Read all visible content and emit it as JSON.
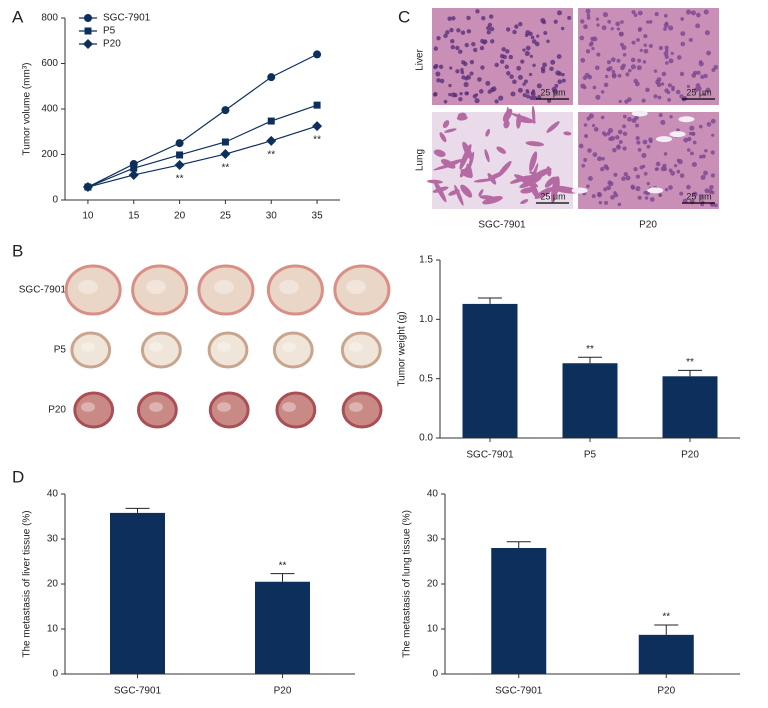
{
  "panel_labels": [
    "A",
    "B",
    "C",
    "D"
  ],
  "histology": {
    "row_labels": [
      "Liver",
      "Lung"
    ],
    "column_labels": [
      "SGC-7901",
      "P20"
    ],
    "scale_bar": "25 μm"
  },
  "tumor_photo": {
    "row_labels": [
      "SGC-7901",
      "P5",
      "P20"
    ]
  },
  "chart_data": [
    {
      "type": "line",
      "ylabel": "Tumor volume (mm³)",
      "x": [
        10,
        15,
        20,
        25,
        30,
        35
      ],
      "xlim": [
        7.5,
        37.5
      ],
      "xticks": [
        10,
        15,
        20,
        25,
        30,
        35
      ],
      "ylim": [
        0,
        800
      ],
      "yticks": [
        0,
        200,
        400,
        600,
        800
      ],
      "legend": "upper left",
      "series": [
        {
          "name": "SGC-7901",
          "color": "#0d2f5c",
          "marker": "circle",
          "values": [
            57,
            158,
            250,
            395,
            540,
            640
          ]
        },
        {
          "name": "P5",
          "color": "#0d2f5c",
          "marker": "square",
          "values": [
            57,
            140,
            198,
            255,
            347,
            417
          ]
        },
        {
          "name": "P20",
          "color": "#0d2f5c",
          "marker": "diamond",
          "values": [
            57,
            110,
            154,
            202,
            260,
            325
          ]
        }
      ],
      "annotations": [
        {
          "text": "**",
          "x": 20
        },
        {
          "text": "**",
          "x": 25
        },
        {
          "text": "**",
          "x": 30
        },
        {
          "text": "**",
          "x": 35
        }
      ]
    },
    {
      "type": "bar",
      "ylabel": "Tumor weight (g)",
      "categories": [
        "SGC-7901",
        "P5",
        "P20"
      ],
      "values": [
        1.13,
        0.63,
        0.52
      ],
      "errors": [
        0.05,
        0.05,
        0.05
      ],
      "color": "#0d2f5c",
      "ylim": [
        0,
        1.5
      ],
      "yticks": [
        {
          "value": 0,
          "label": "0.0"
        },
        0.5,
        {
          "value": 1,
          "label": "1.0"
        },
        1.5
      ],
      "annotations": [
        {
          "text": "**",
          "category": "P5"
        },
        {
          "text": "**",
          "category": "P20"
        }
      ]
    },
    {
      "type": "bar",
      "ylabel": "The metastasis of liver tissue (%)",
      "categories": [
        "SGC-7901",
        "P20"
      ],
      "values": [
        35.8,
        20.5
      ],
      "errors": [
        1.0,
        1.8
      ],
      "color": "#0d2f5c",
      "ylim": [
        0,
        40
      ],
      "yticks": [
        0,
        10,
        20,
        30,
        40
      ],
      "annotations": [
        {
          "text": "**",
          "category": "P20"
        }
      ]
    },
    {
      "type": "bar",
      "ylabel": "The metastasis of lung tissue (%)",
      "categories": [
        "SGC-7901",
        "P20"
      ],
      "values": [
        28,
        8.7
      ],
      "errors": [
        1.4,
        2.2
      ],
      "color": "#0d2f5c",
      "ylim": [
        0,
        40
      ],
      "yticks": [
        0,
        10,
        20,
        30,
        40
      ],
      "annotations": [
        {
          "text": "**",
          "category": "P20"
        }
      ]
    }
  ]
}
